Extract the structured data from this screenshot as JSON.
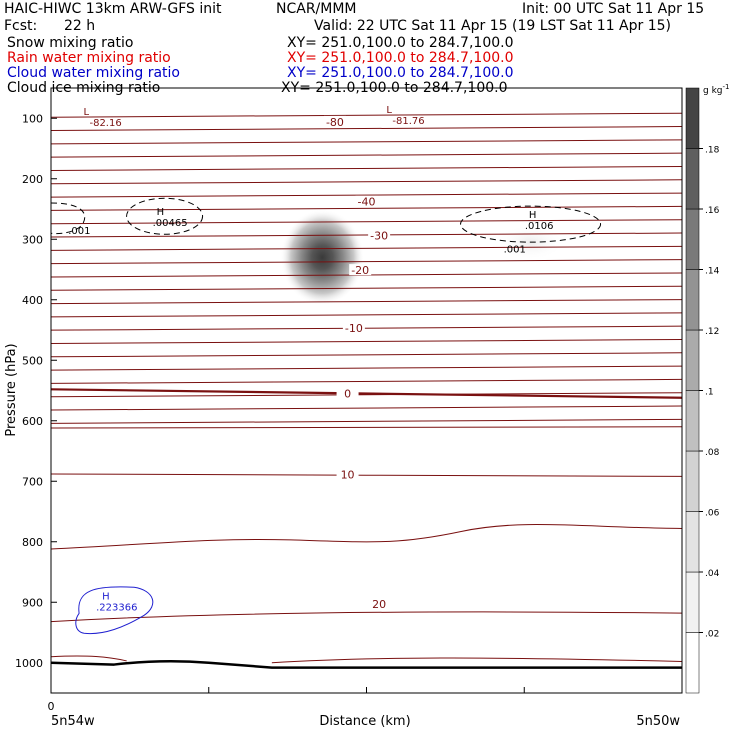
{
  "header": {
    "title_left": "HAIC-HIWC 13km ARW-GFS init",
    "agency": "NCAR/MMM",
    "init": "Init: 00 UTC Sat 11 Apr 15",
    "fcst_label": "Fcst:",
    "fcst_value": "22 h",
    "valid": "Valid: 22 UTC Sat 11 Apr 15 (19 LST Sat 11 Apr 15)"
  },
  "fields": [
    {
      "name": "Snow mixing ratio",
      "xy": "XY= 251.0,100.0 to 284.7,100.0",
      "color": "#000000"
    },
    {
      "name": "Rain water mixing ratio",
      "xy": "XY= 251.0,100.0 to 284.7,100.0",
      "color": "#e00000"
    },
    {
      "name": "Cloud water mixing ratio",
      "xy": "XY= 251.0,100.0 to 284.7,100.0",
      "color": "#0000c8"
    },
    {
      "name": "Cloud ice mixing ratio",
      "xy": "XY= 251.0,100.0 to 284.7,100.0",
      "color": "#000000"
    }
  ],
  "colors": {
    "temperature": "#7a1010",
    "cloud_water": "#2020d0",
    "ice": "#000000",
    "axis": "#000000"
  },
  "chart_data": {
    "type": "contour",
    "xlabel": "Distance (km)",
    "ylabel": "Pressure (hPa)",
    "x_start_label": "5n54w",
    "x_end_label": "5n50w",
    "x_tick_zero": "0",
    "x_tick_count": 5,
    "ylim": [
      1050,
      50
    ],
    "y_ticks": [
      100,
      200,
      300,
      400,
      500,
      600,
      700,
      800,
      900,
      1000
    ],
    "colorbar": {
      "unit": "g kg",
      "unit_exp": "-1",
      "range": [
        0,
        0.2
      ],
      "ticks": [
        ".02",
        ".04",
        ".06",
        ".08",
        ".1",
        ".12",
        ".14",
        ".16",
        ".18"
      ],
      "shades": [
        "#ffffff",
        "#f2f2f2",
        "#e3e3e3",
        "#d2d2d2",
        "#c0c0c0",
        "#ababab",
        "#939393",
        "#7a7a7a",
        "#5f5f5f",
        "#444444"
      ]
    },
    "snow_max": {
      "x": 0.43,
      "p": 330,
      "value": 0.2
    },
    "snow_minor": {
      "x": 0.76,
      "p": 305,
      "value": 0.01
    },
    "temperature_contours": [
      {
        "label": "-80",
        "label_x": 0.45,
        "label_p": 106
      },
      {
        "label": "-40",
        "label_x": 0.5,
        "label_p": 238
      },
      {
        "label": "-30",
        "label_x": 0.52,
        "label_p": 294
      },
      {
        "label": "-20",
        "label_x": 0.49,
        "label_p": 351
      },
      {
        "label": "-10",
        "label_x": 0.48,
        "label_p": 447
      },
      {
        "label": "0",
        "label_x": 0.47,
        "label_p": 555
      },
      {
        "label": "10",
        "label_x": 0.47,
        "label_p": 689
      },
      {
        "label": "20",
        "label_x": 0.52,
        "label_p": 903
      }
    ],
    "ice_annotations": [
      {
        "h": "L",
        "v": "-82.16",
        "x": 0.08,
        "p": 95
      },
      {
        "h": "L",
        "v": "-81.76",
        "x": 0.56,
        "p": 91
      },
      {
        "h": "H",
        "v": ".00465",
        "x": 0.18,
        "p": 260
      },
      {
        "h": "H",
        "v": ".0106",
        "x": 0.77,
        "p": 265
      },
      {
        "h": "",
        "v": ".001",
        "x": 0.04,
        "p": 285
      },
      {
        "h": "",
        "v": ".001",
        "x": 0.73,
        "p": 315
      }
    ],
    "cloud_water_max": {
      "h": "H",
      "v": ".223366",
      "x": 0.1,
      "p": 905
    }
  }
}
